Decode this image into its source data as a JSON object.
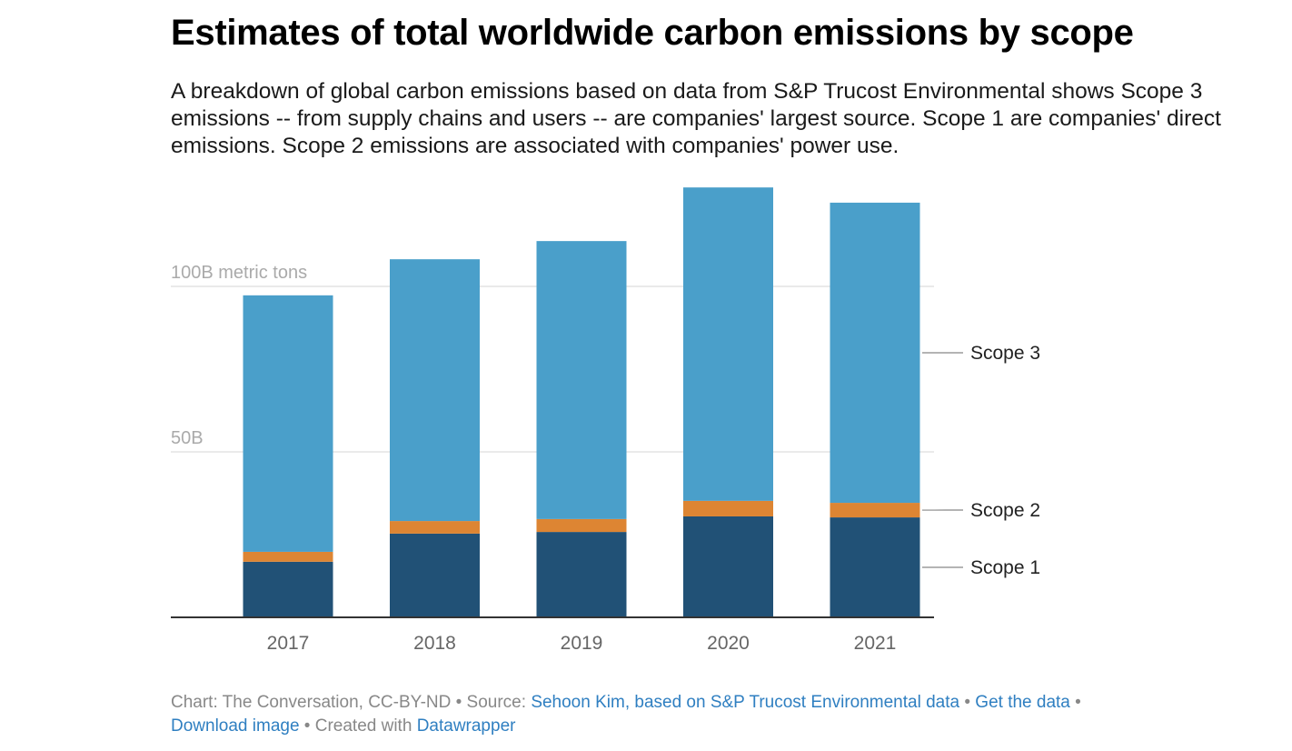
{
  "title": "Estimates of total worldwide carbon emissions by scope",
  "subtitle": "A breakdown of global carbon emissions based on data from S&P Trucost Environmental shows Scope 3 emissions -- from supply chains and users -- are companies' largest source. Scope 1 are companies' direct emissions. Scope 2 emissions are associated with companies' power use.",
  "chart_data": {
    "type": "bar",
    "stacked": true,
    "categories": [
      "2017",
      "2018",
      "2019",
      "2020",
      "2021"
    ],
    "series": [
      {
        "name": "Scope 1",
        "color": "#215176",
        "values": [
          16.8,
          25.3,
          25.8,
          30.5,
          30.2
        ]
      },
      {
        "name": "Scope 2",
        "color": "#dd8533",
        "values": [
          3.0,
          3.8,
          3.9,
          4.7,
          4.4
        ]
      },
      {
        "name": "Scope 3",
        "color": "#4a9fca",
        "values": [
          77.5,
          79.1,
          84.0,
          94.7,
          90.7
        ]
      }
    ],
    "yticks": [
      {
        "value": 50,
        "label": "50B"
      },
      {
        "value": 100,
        "label": "100B metric tons"
      }
    ],
    "ylim": [
      0,
      130
    ],
    "grid": true,
    "legend": "right, direct labels"
  },
  "footer": {
    "prefix": "Chart: The Conversation, CC-BY-ND • Source: ",
    "source": "Sehoon Kim, based on S&P Trucost Environmental data",
    "sep1": " • ",
    "get_data": "Get the data",
    "sep2": " • ",
    "download": "Download image",
    "sep3": " • Created with ",
    "datawrapper": "Datawrapper"
  }
}
